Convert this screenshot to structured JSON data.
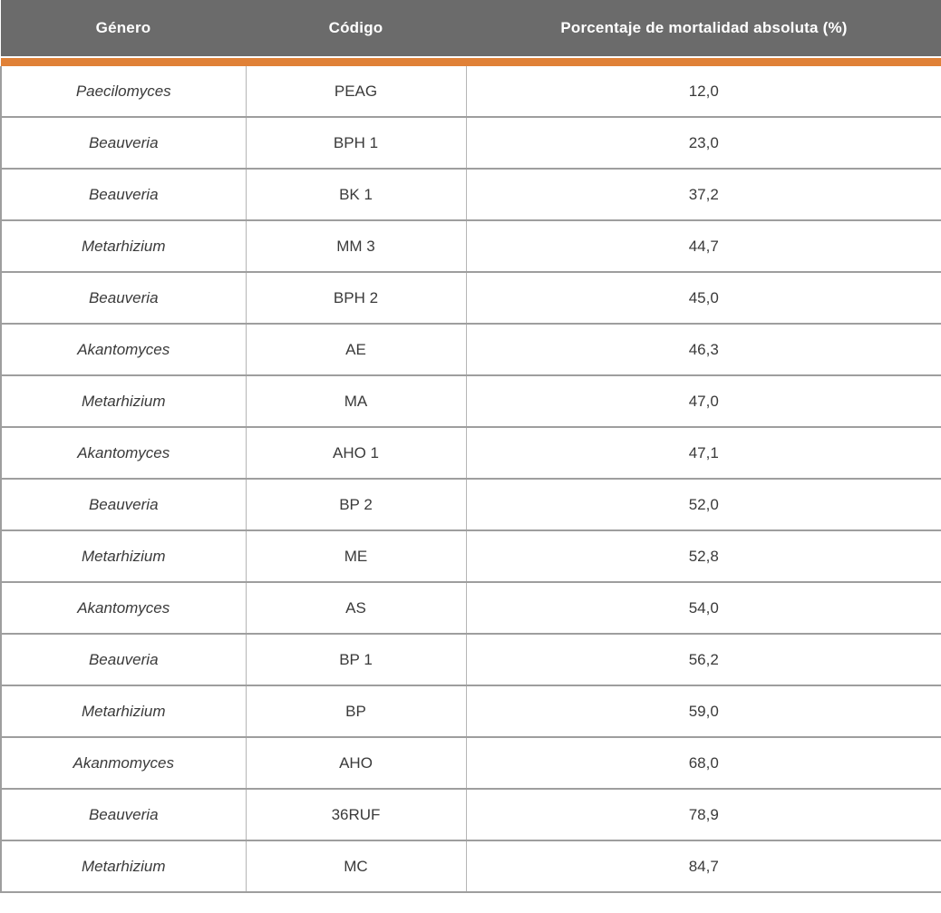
{
  "table": {
    "columns": [
      {
        "label": "Género"
      },
      {
        "label": "Código"
      },
      {
        "label": "Porcentaje de mortalidad absoluta (%)"
      }
    ],
    "rows": [
      {
        "genus": "Paecilomyces",
        "code": "PEAG",
        "value": "12,0"
      },
      {
        "genus": "Beauveria",
        "code": "BPH 1",
        "value": "23,0"
      },
      {
        "genus": "Beauveria",
        "code": "BK 1",
        "value": "37,2"
      },
      {
        "genus": "Metarhizium",
        "code": "MM 3",
        "value": "44,7"
      },
      {
        "genus": "Beauveria",
        "code": "BPH 2",
        "value": "45,0"
      },
      {
        "genus": "Akantomyces",
        "code": "AE",
        "value": "46,3"
      },
      {
        "genus": "Metarhizium",
        "code": "MA",
        "value": "47,0"
      },
      {
        "genus": "Akantomyces",
        "code": "AHO 1",
        "value": "47,1"
      },
      {
        "genus": "Beauveria",
        "code": "BP 2",
        "value": "52,0"
      },
      {
        "genus": "Metarhizium",
        "code": "ME",
        "value": "52,8"
      },
      {
        "genus": "Akantomyces",
        "code": "AS",
        "value": "54,0"
      },
      {
        "genus": "Beauveria",
        "code": "BP 1",
        "value": "56,2"
      },
      {
        "genus": "Metarhizium",
        "code": "BP",
        "value": "59,0"
      },
      {
        "genus": "Akanmomyces",
        "code": "AHO",
        "value": "68,0"
      },
      {
        "genus": "Beauveria",
        "code": "36RUF",
        "value": "78,9"
      },
      {
        "genus": "Metarhizium",
        "code": "MC",
        "value": "84,7"
      }
    ]
  },
  "colors": {
    "page_bg": "#ffffff",
    "header_bg": "#6b6b6b",
    "header_text": "#ffffff",
    "accent_orange": "#e08137",
    "row_border": "#9e9e9e",
    "col_border": "#b5b5b5",
    "body_text": "#3a3a3a"
  }
}
